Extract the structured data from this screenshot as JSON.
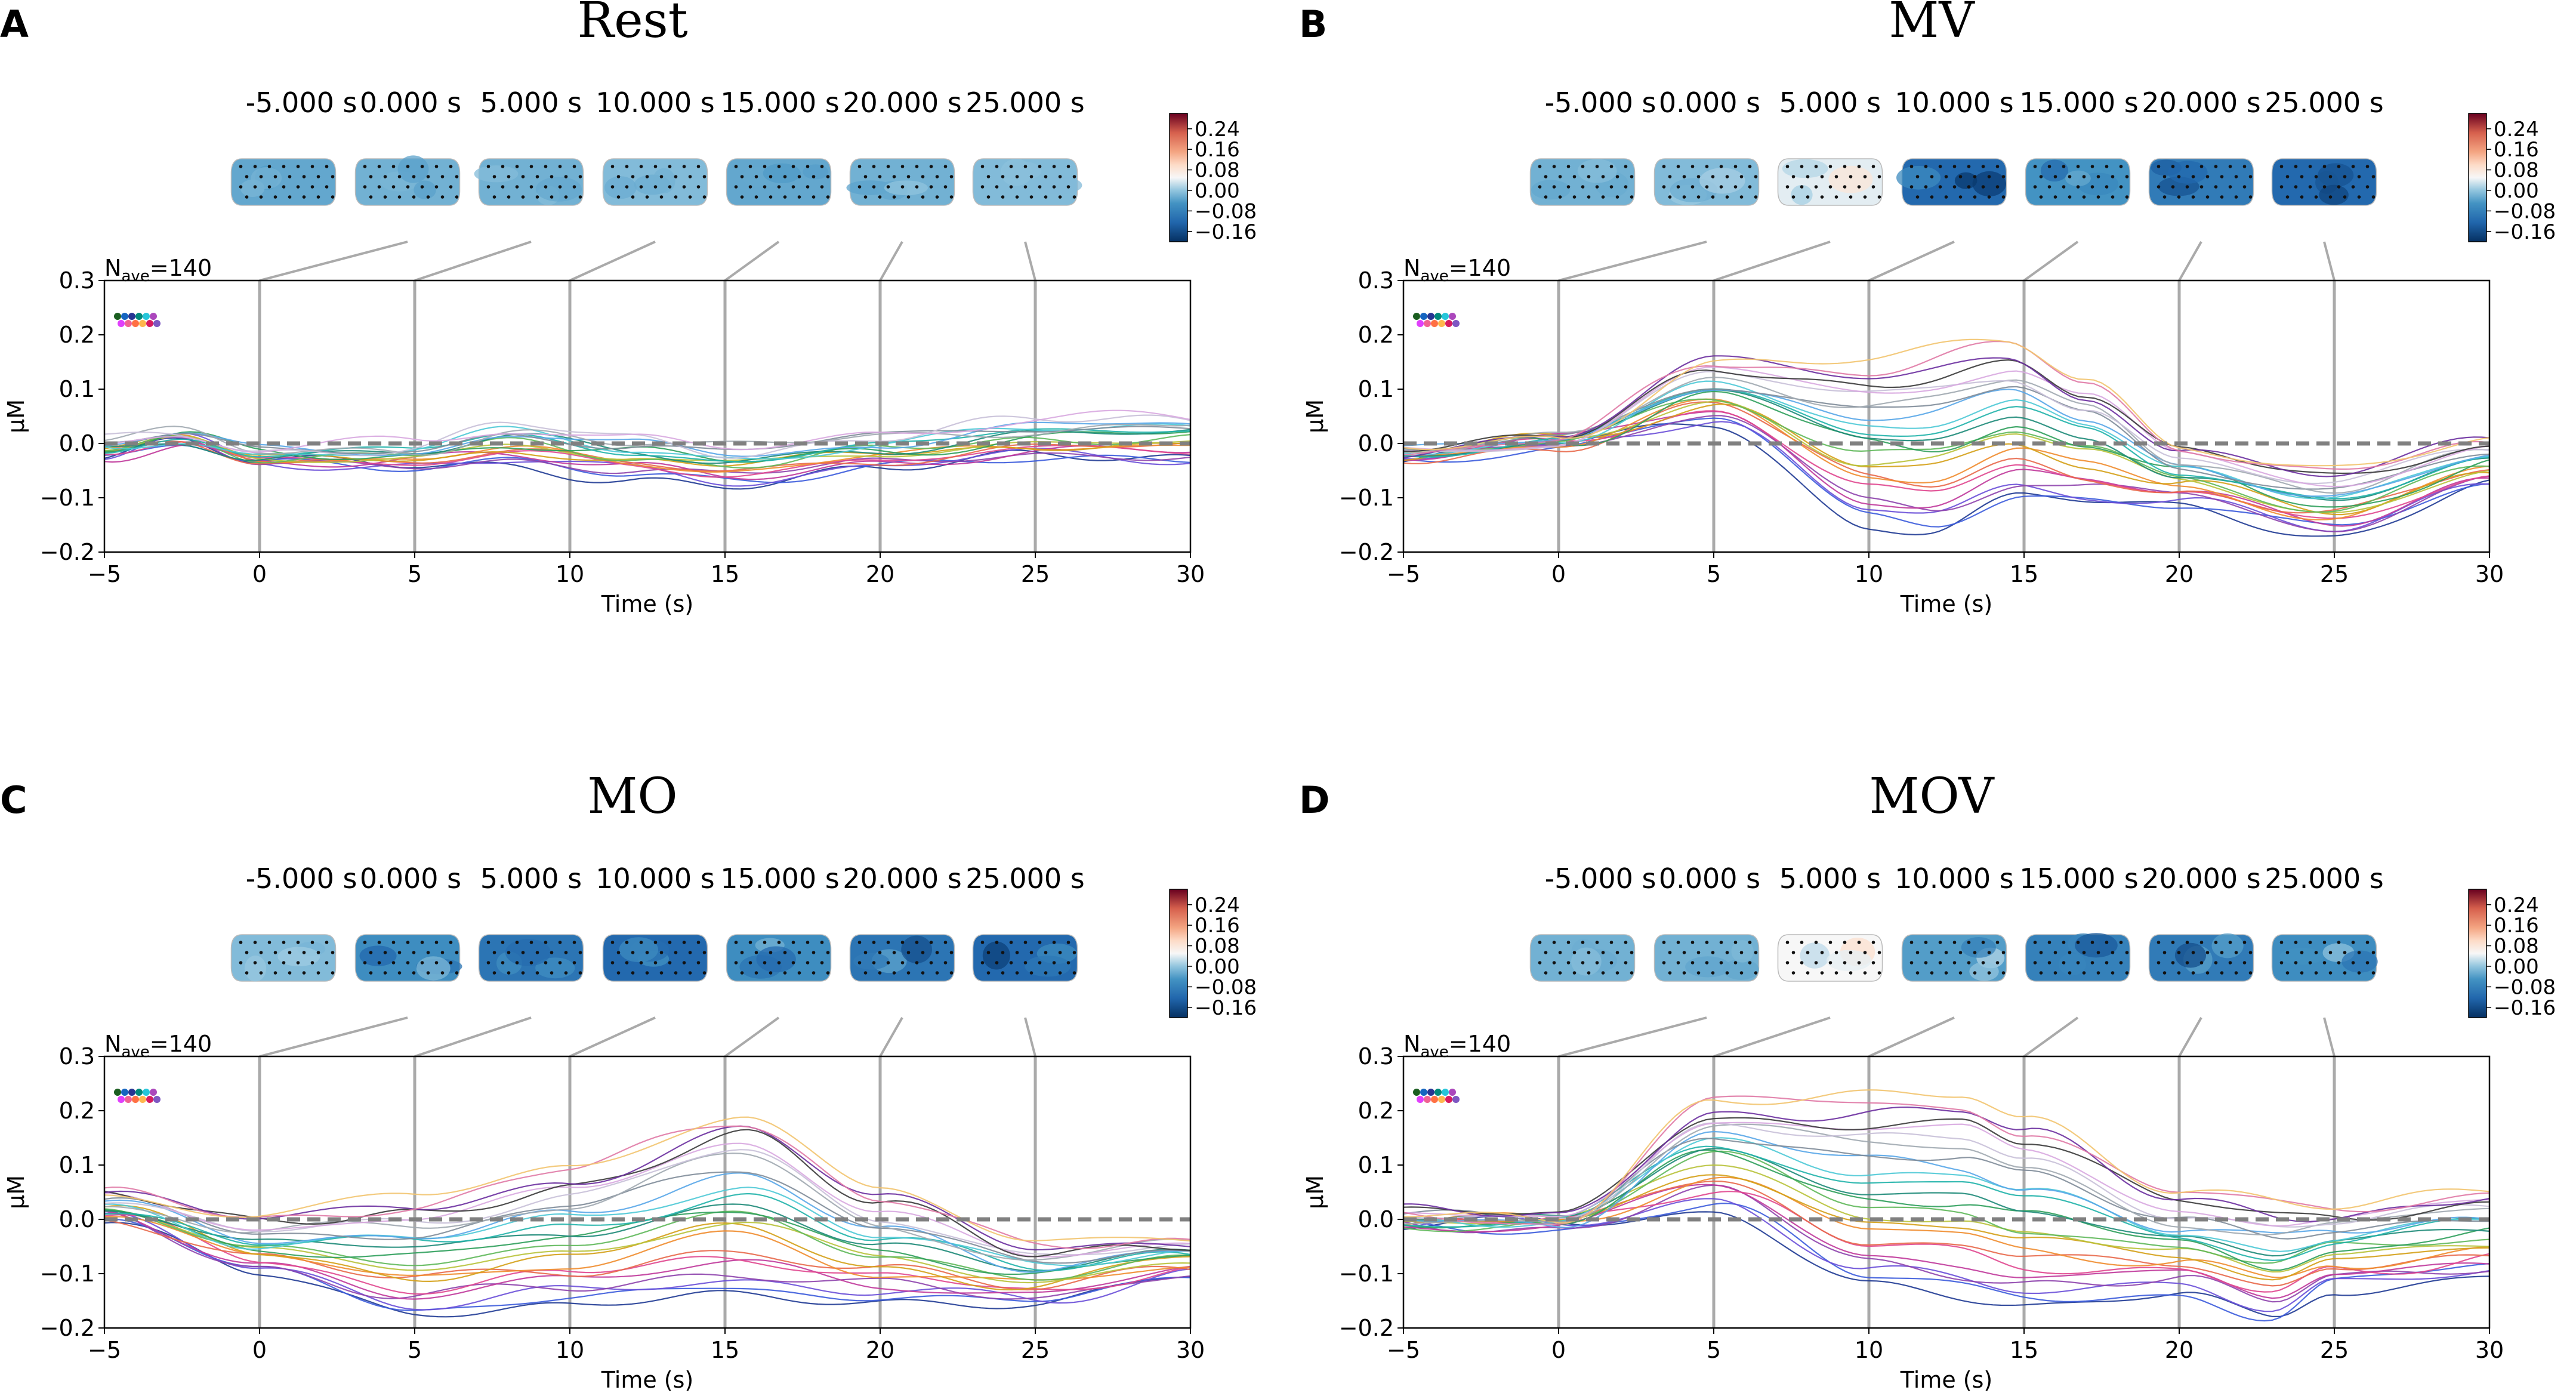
{
  "chart_data": [
    {
      "type": "line",
      "panel": "A",
      "title": "Rest",
      "xlabel": "Time (s)",
      "ylabel": "µM",
      "xlim": [
        -5,
        30
      ],
      "ylim": [
        -0.2,
        0.3
      ],
      "xticks": [
        "−5",
        "0",
        "5",
        "10",
        "15",
        "20",
        "25",
        "30"
      ],
      "yticks": [
        "−0.2",
        "−0.1",
        "0.0",
        "0.1",
        "0.2",
        "0.3"
      ],
      "nave_label": "N",
      "nave_sub": "ave",
      "nave_value": "=140",
      "topomap_times": [
        "-5.000 s",
        "0.000 s",
        "5.000 s",
        "10.000 s",
        "15.000 s",
        "20.000 s",
        "25.000 s"
      ],
      "topomap_values": [
        -0.03,
        -0.02,
        -0.02,
        -0.01,
        -0.03,
        -0.02,
        -0.01
      ],
      "colorbar_ticks": [
        "0.24",
        "0.16",
        "0.08",
        "0.00",
        "−0.08",
        "−0.16"
      ],
      "colorbar_range": [
        -0.2,
        0.3
      ],
      "time_markers": [
        0,
        5,
        10,
        15,
        20,
        25
      ],
      "baseline": 0.0,
      "n_channels": 20,
      "representative_series": [
        {
          "name": "upper envelope",
          "x": [
            -5,
            -2.5,
            0,
            5,
            8,
            12,
            15,
            20,
            25,
            30
          ],
          "values": [
            0.0,
            0.015,
            -0.01,
            0.0,
            0.035,
            0.005,
            -0.01,
            0.02,
            0.04,
            0.05
          ]
        },
        {
          "name": "lower envelope",
          "x": [
            -5,
            -2.5,
            0,
            5,
            8,
            12,
            15,
            20,
            25,
            30
          ],
          "values": [
            -0.03,
            0.0,
            -0.04,
            -0.04,
            -0.04,
            -0.06,
            -0.07,
            -0.05,
            -0.03,
            -0.03
          ]
        }
      ]
    },
    {
      "type": "line",
      "panel": "B",
      "title": "MV",
      "xlabel": "Time (s)",
      "ylabel": "µM",
      "xlim": [
        -5,
        30
      ],
      "ylim": [
        -0.2,
        0.3
      ],
      "xticks": [
        "−5",
        "0",
        "5",
        "10",
        "15",
        "20",
        "25",
        "30"
      ],
      "yticks": [
        "−0.2",
        "−0.1",
        "0.0",
        "0.1",
        "0.2",
        "0.3"
      ],
      "nave_label": "N",
      "nave_sub": "ave",
      "nave_value": "=140",
      "topomap_times": [
        "-5.000 s",
        "0.000 s",
        "5.000 s",
        "10.000 s",
        "15.000 s",
        "20.000 s",
        "25.000 s"
      ],
      "topomap_values": [
        -0.02,
        -0.01,
        0.04,
        -0.12,
        -0.05,
        -0.09,
        -0.12
      ],
      "colorbar_ticks": [
        "0.24",
        "0.16",
        "0.08",
        "0.00",
        "−0.08",
        "−0.16"
      ],
      "colorbar_range": [
        -0.2,
        0.3
      ],
      "time_markers": [
        0,
        5,
        10,
        15,
        20,
        25
      ],
      "baseline": 0.0,
      "n_channels": 24,
      "representative_series": [
        {
          "name": "upper envelope",
          "x": [
            -5,
            0,
            5,
            10,
            14.5,
            17,
            20,
            25,
            30
          ],
          "values": [
            -0.01,
            0.01,
            0.15,
            0.15,
            0.19,
            0.12,
            0.0,
            -0.05,
            0.0
          ]
        },
        {
          "name": "lower envelope",
          "x": [
            -5,
            0,
            5,
            10,
            12,
            15,
            20,
            25,
            30
          ],
          "values": [
            -0.03,
            0.0,
            0.04,
            -0.15,
            -0.16,
            -0.1,
            -0.12,
            -0.17,
            -0.07
          ]
        }
      ]
    },
    {
      "type": "line",
      "panel": "C",
      "title": "MO",
      "xlabel": "Time (s)",
      "ylabel": "µM",
      "xlim": [
        -5,
        30
      ],
      "ylim": [
        -0.2,
        0.3
      ],
      "xticks": [
        "−5",
        "0",
        "5",
        "10",
        "15",
        "20",
        "25",
        "30"
      ],
      "yticks": [
        "−0.2",
        "−0.1",
        "0.0",
        "0.1",
        "0.2",
        "0.3"
      ],
      "nave_label": "N",
      "nave_sub": "ave",
      "nave_value": "=140",
      "topomap_times": [
        "-5.000 s",
        "0.000 s",
        "5.000 s",
        "10.000 s",
        "15.000 s",
        "20.000 s",
        "25.000 s"
      ],
      "topomap_values": [
        -0.01,
        -0.06,
        -0.1,
        -0.12,
        -0.06,
        -0.1,
        -0.12
      ],
      "colorbar_ticks": [
        "0.24",
        "0.16",
        "0.08",
        "0.00",
        "−0.08",
        "−0.16"
      ],
      "colorbar_range": [
        -0.2,
        0.3
      ],
      "time_markers": [
        0,
        5,
        10,
        15,
        20,
        25
      ],
      "baseline": 0.0,
      "n_channels": 24,
      "representative_series": [
        {
          "name": "upper envelope",
          "x": [
            -5,
            0,
            5,
            10,
            15.5,
            20,
            25,
            30
          ],
          "values": [
            0.05,
            0.0,
            0.04,
            0.1,
            0.2,
            0.05,
            -0.05,
            -0.03
          ]
        },
        {
          "name": "lower envelope",
          "x": [
            -5,
            0,
            5,
            10,
            15,
            20,
            25,
            30
          ],
          "values": [
            0.0,
            -0.1,
            -0.17,
            -0.16,
            -0.14,
            -0.15,
            -0.16,
            -0.1
          ]
        }
      ]
    },
    {
      "type": "line",
      "panel": "D",
      "title": "MOV",
      "xlabel": "Time (s)",
      "ylabel": "µM",
      "xlim": [
        -5,
        30
      ],
      "ylim": [
        -0.2,
        0.3
      ],
      "xticks": [
        "−5",
        "0",
        "5",
        "10",
        "15",
        "20",
        "25",
        "30"
      ],
      "yticks": [
        "−0.2",
        "−0.1",
        "0.0",
        "0.1",
        "0.2",
        "0.3"
      ],
      "nave_label": "N",
      "nave_sub": "ave",
      "nave_value": "=140",
      "topomap_times": [
        "-5.000 s",
        "0.000 s",
        "5.000 s",
        "10.000 s",
        "15.000 s",
        "20.000 s",
        "25.000 s"
      ],
      "topomap_values": [
        -0.02,
        -0.02,
        0.05,
        -0.04,
        -0.08,
        -0.09,
        -0.06
      ],
      "colorbar_ticks": [
        "0.24",
        "0.16",
        "0.08",
        "0.00",
        "−0.08",
        "−0.16"
      ],
      "colorbar_range": [
        -0.2,
        0.3
      ],
      "time_markers": [
        0,
        5,
        10,
        15,
        20,
        25
      ],
      "baseline": 0.0,
      "n_channels": 24,
      "representative_series": [
        {
          "name": "upper envelope",
          "x": [
            -5,
            0,
            5,
            10,
            13,
            15,
            20,
            25,
            30
          ],
          "values": [
            0.01,
            0.0,
            0.22,
            0.23,
            0.23,
            0.18,
            0.05,
            0.03,
            0.06
          ]
        },
        {
          "name": "lower envelope",
          "x": [
            -5,
            0,
            5,
            10,
            15,
            20,
            23,
            25,
            30
          ],
          "values": [
            -0.01,
            -0.01,
            0.02,
            -0.13,
            -0.15,
            -0.14,
            -0.19,
            -0.13,
            -0.1
          ]
        }
      ]
    }
  ]
}
